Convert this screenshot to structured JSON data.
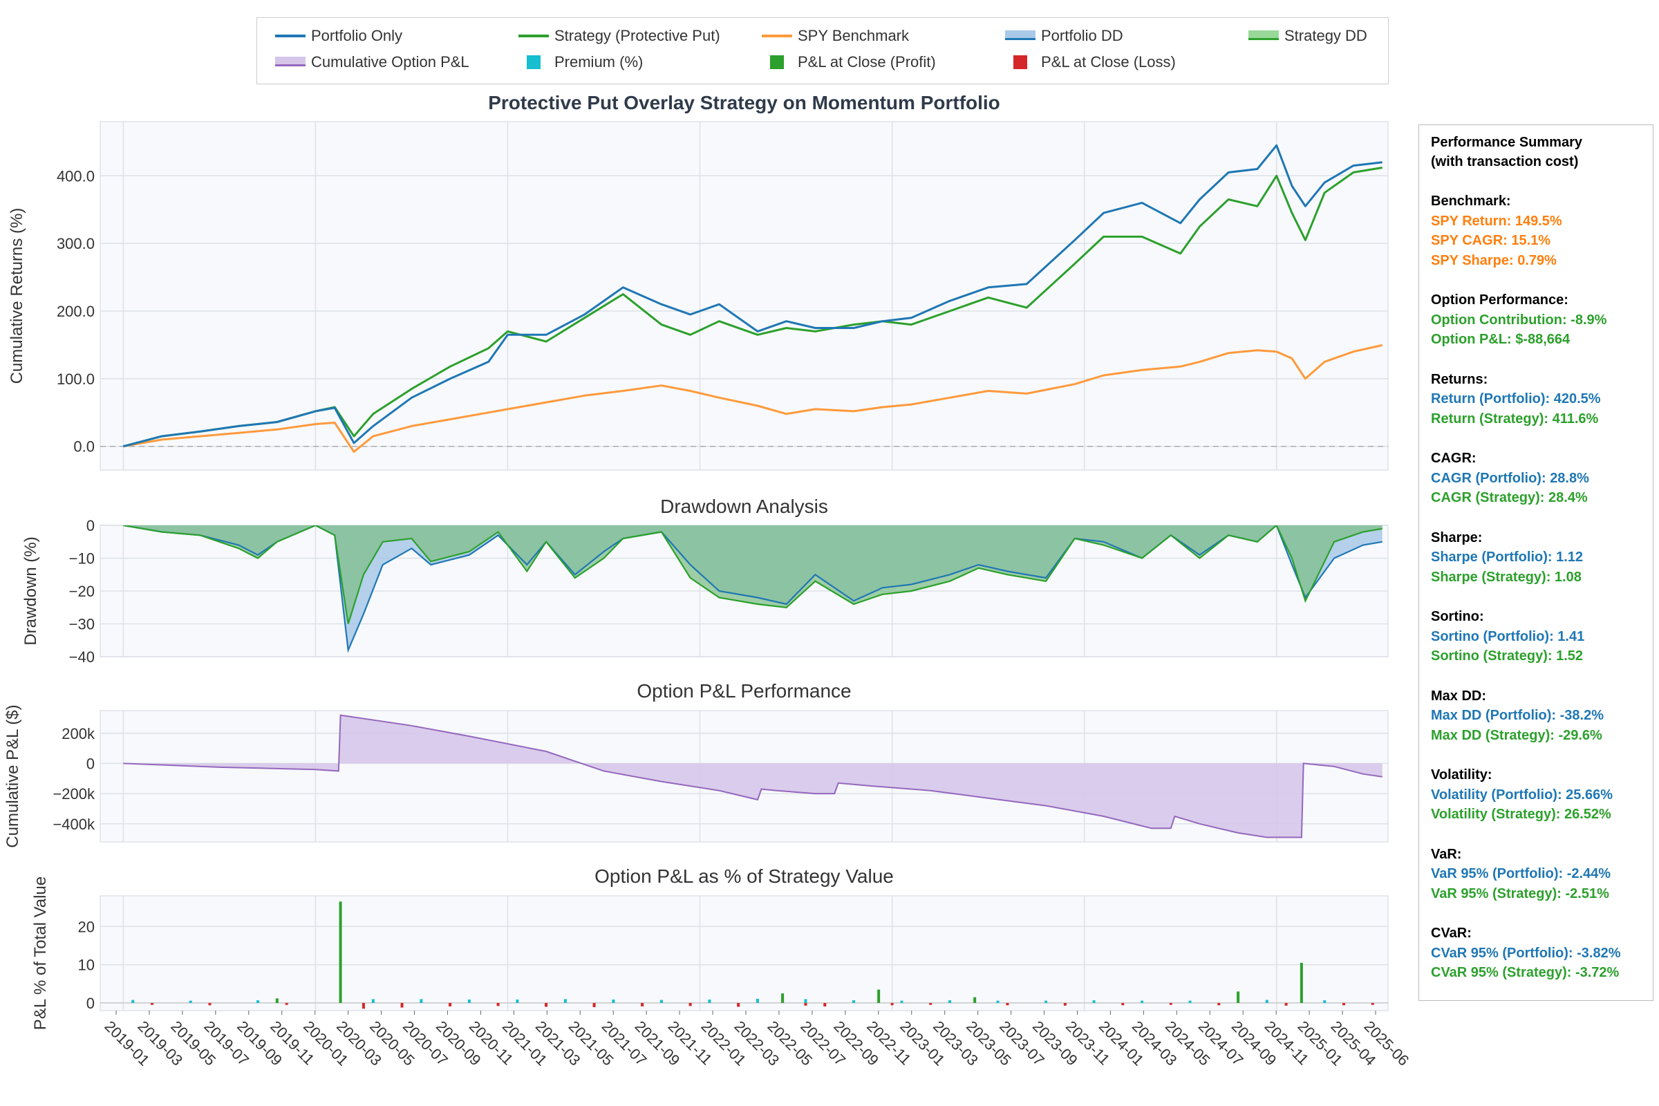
{
  "legend": {
    "items": [
      {
        "label": "Portfolio Only",
        "kind": "line",
        "color": "#1f77b4"
      },
      {
        "label": "Strategy (Protective Put)",
        "kind": "line",
        "color": "#2ca02c"
      },
      {
        "label": "SPY Benchmark",
        "kind": "line",
        "color": "#ff9a3c"
      },
      {
        "label": "Portfolio DD",
        "kind": "area",
        "color": "#a8c9e8"
      },
      {
        "label": "Strategy DD",
        "kind": "area",
        "color": "#98d898"
      },
      {
        "label": "Cumulative Option P&L",
        "kind": "area",
        "color": "#d6c6ea"
      },
      {
        "label": "Premium (%)",
        "kind": "square",
        "color": "#17becf"
      },
      {
        "label": "P&L at Close (Profit)",
        "kind": "square",
        "color": "#2ca02c"
      },
      {
        "label": "P&L at Close (Loss)",
        "kind": "square",
        "color": "#d62728"
      }
    ]
  },
  "colors": {
    "portfolio": "#1f77b4",
    "strategy": "#2ca02c",
    "spy": "#ff9a3c",
    "option": "#9467bd",
    "premium": "#17becf",
    "loss": "#d62728"
  },
  "chart_data": [
    {
      "id": "returns",
      "type": "line",
      "title": "Protective Put Overlay Strategy on Momentum Portfolio",
      "ylabel": "Cumulative Returns (%)",
      "ylim": [
        -35,
        480
      ],
      "yticks": [
        0,
        100,
        200,
        300,
        400
      ],
      "ytick_labels": [
        "0.0",
        "100.0",
        "200.0",
        "300.0",
        "400.0"
      ],
      "x": [
        2019.0,
        2019.2,
        2019.4,
        2019.6,
        2019.8,
        2020.0,
        2020.1,
        2020.2,
        2020.3,
        2020.5,
        2020.7,
        2020.9,
        2021.0,
        2021.2,
        2021.4,
        2021.6,
        2021.8,
        2021.95,
        2022.1,
        2022.3,
        2022.45,
        2022.6,
        2022.8,
        2022.95,
        2023.1,
        2023.3,
        2023.5,
        2023.7,
        2023.95,
        2024.1,
        2024.3,
        2024.5,
        2024.6,
        2024.75,
        2024.9,
        2025.0,
        2025.08,
        2025.15,
        2025.25,
        2025.4,
        2025.55
      ],
      "series": [
        {
          "name": "Portfolio Only",
          "values": [
            0,
            15,
            22,
            30,
            36,
            52,
            57,
            5,
            30,
            72,
            100,
            125,
            165,
            165,
            195,
            235,
            210,
            195,
            210,
            170,
            185,
            175,
            175,
            185,
            190,
            215,
            235,
            240,
            305,
            345,
            360,
            330,
            365,
            405,
            410,
            445,
            385,
            355,
            390,
            415,
            420
          ]
        },
        {
          "name": "Strategy (Protective Put)",
          "values": [
            0,
            15,
            22,
            30,
            36,
            52,
            58,
            15,
            48,
            85,
            118,
            145,
            170,
            155,
            190,
            225,
            180,
            165,
            185,
            165,
            175,
            170,
            180,
            185,
            180,
            200,
            220,
            205,
            270,
            310,
            310,
            285,
            325,
            365,
            355,
            400,
            345,
            305,
            375,
            405,
            412
          ]
        },
        {
          "name": "SPY Benchmark",
          "values": [
            0,
            10,
            15,
            20,
            25,
            33,
            35,
            -8,
            15,
            30,
            40,
            50,
            55,
            65,
            75,
            82,
            90,
            82,
            72,
            60,
            48,
            55,
            52,
            58,
            62,
            72,
            82,
            78,
            92,
            105,
            113,
            118,
            125,
            138,
            142,
            140,
            130,
            100,
            125,
            140,
            149.5
          ]
        }
      ]
    },
    {
      "id": "drawdown",
      "type": "area",
      "title": "Drawdown Analysis",
      "ylabel": "Drawdown (%)",
      "ylim": [
        -40,
        0
      ],
      "yticks": [
        0,
        -10,
        -20,
        -30,
        -40
      ],
      "ytick_labels": [
        "0",
        "−10",
        "−20",
        "−30",
        "−40"
      ],
      "x": [
        2019.0,
        2019.2,
        2019.4,
        2019.6,
        2019.7,
        2019.8,
        2020.0,
        2020.1,
        2020.17,
        2020.25,
        2020.35,
        2020.5,
        2020.6,
        2020.8,
        2020.95,
        2021.1,
        2021.2,
        2021.35,
        2021.5,
        2021.6,
        2021.8,
        2021.95,
        2022.1,
        2022.3,
        2022.45,
        2022.6,
        2022.8,
        2022.95,
        2023.1,
        2023.3,
        2023.45,
        2023.6,
        2023.8,
        2023.95,
        2024.1,
        2024.3,
        2024.45,
        2024.6,
        2024.75,
        2024.9,
        2025.0,
        2025.08,
        2025.15,
        2025.3,
        2025.45,
        2025.55
      ],
      "series": [
        {
          "name": "Portfolio DD",
          "values": [
            0,
            -2,
            -3,
            -6,
            -9,
            -5,
            0,
            -3,
            -38,
            -27,
            -12,
            -7,
            -12,
            -9,
            -3,
            -12,
            -5,
            -15,
            -8,
            -4,
            -2,
            -12,
            -20,
            -22,
            -24,
            -15,
            -23,
            -19,
            -18,
            -15,
            -12,
            -14,
            -16,
            -4,
            -5,
            -10,
            -3,
            -9,
            -3,
            -5,
            0,
            -12,
            -22,
            -10,
            -6,
            -5
          ]
        },
        {
          "name": "Strategy DD",
          "values": [
            0,
            -2,
            -3,
            -7,
            -10,
            -5,
            0,
            -3,
            -30,
            -15,
            -5,
            -4,
            -11,
            -8,
            -2,
            -14,
            -5,
            -16,
            -10,
            -4,
            -2,
            -16,
            -22,
            -24,
            -25,
            -17,
            -24,
            -21,
            -20,
            -17,
            -13,
            -15,
            -17,
            -4,
            -6,
            -10,
            -3,
            -10,
            -3,
            -5,
            0,
            -10,
            -23,
            -5,
            -2,
            -1
          ]
        }
      ]
    },
    {
      "id": "option_pnl",
      "type": "area",
      "title": "Option P&L Performance",
      "ylabel": "Cumulative P&L ($)",
      "ylim": [
        -520000,
        350000
      ],
      "yticks": [
        200000,
        0,
        -200000,
        -400000
      ],
      "ytick_labels": [
        "200k",
        "0",
        "−200k",
        "−400k"
      ],
      "x": [
        2019.0,
        2019.5,
        2020.0,
        2020.12,
        2020.13,
        2020.5,
        2020.8,
        2021.2,
        2021.5,
        2021.8,
        2022.1,
        2022.3,
        2022.32,
        2022.4,
        2022.6,
        2022.7,
        2022.72,
        2022.9,
        2023.2,
        2023.5,
        2023.8,
        2024.1,
        2024.35,
        2024.45,
        2024.47,
        2024.6,
        2024.8,
        2024.95,
        2025.0,
        2025.13,
        2025.14,
        2025.3,
        2025.45,
        2025.55
      ],
      "series": [
        {
          "name": "Cumulative Option P&L",
          "values": [
            0,
            -25000,
            -40000,
            -50000,
            320000,
            250000,
            180000,
            80000,
            -50000,
            -120000,
            -180000,
            -240000,
            -170000,
            -180000,
            -200000,
            -200000,
            -130000,
            -150000,
            -180000,
            -230000,
            -280000,
            -350000,
            -430000,
            -430000,
            -350000,
            -400000,
            -460000,
            -490000,
            -490000,
            -490000,
            0,
            -20000,
            -70000,
            -88664
          ]
        }
      ]
    },
    {
      "id": "option_pct",
      "type": "bar",
      "title": "Option P&L as % of Strategy Value",
      "ylabel": "P&L % of Total Value",
      "ylim": [
        -2,
        28
      ],
      "yticks": [
        0,
        10,
        20
      ],
      "ytick_labels": [
        "0",
        "10",
        "20"
      ],
      "bar_x": [
        2020.13,
        2022.43,
        2022.93,
        2023.43,
        2024.8,
        2025.13,
        2019.8
      ],
      "bar_values": [
        26.5,
        2.5,
        3.5,
        1.5,
        3.0,
        10.5,
        1.2
      ],
      "premium_x": [
        2019.05,
        2019.35,
        2019.7,
        2020.3,
        2020.55,
        2020.8,
        2021.05,
        2021.3,
        2021.55,
        2021.8,
        2022.05,
        2022.3,
        2022.55,
        2022.8,
        2023.05,
        2023.3,
        2023.55,
        2023.8,
        2024.05,
        2024.3,
        2024.55,
        2024.95,
        2025.25
      ],
      "premium_values": [
        0.8,
        0.6,
        0.7,
        1.0,
        1.0,
        0.9,
        0.9,
        1.0,
        0.9,
        0.8,
        0.9,
        1.1,
        1.0,
        0.7,
        0.6,
        0.7,
        0.6,
        0.6,
        0.7,
        0.6,
        0.6,
        0.8,
        0.7
      ],
      "loss_x": [
        2019.15,
        2019.45,
        2019.85,
        2020.25,
        2020.45,
        2020.7,
        2020.95,
        2021.2,
        2021.45,
        2021.7,
        2021.95,
        2022.2,
        2022.55,
        2022.65,
        2023.0,
        2023.2,
        2023.6,
        2023.9,
        2024.2,
        2024.45,
        2024.7,
        2025.05,
        2025.35,
        2025.5
      ],
      "loss_values": [
        -0.5,
        -0.6,
        -0.5,
        -1.5,
        -1.2,
        -0.9,
        -0.8,
        -1.0,
        -1.1,
        -0.9,
        -0.8,
        -1.0,
        -0.7,
        -0.9,
        -0.6,
        -0.5,
        -0.6,
        -0.7,
        -0.6,
        -0.5,
        -0.6,
        -0.7,
        -0.6,
        -0.5
      ],
      "xtick_labels": [
        "2019-01",
        "2019-03",
        "2019-05",
        "2019-07",
        "2019-09",
        "2019-11",
        "2020-01",
        "2020-03",
        "2020-05",
        "2020-07",
        "2020-09",
        "2020-11",
        "2021-01",
        "2021-03",
        "2021-05",
        "2021-07",
        "2021-09",
        "2021-11",
        "2022-01",
        "2022-03",
        "2022-05",
        "2022-07",
        "2022-09",
        "2022-11",
        "2023-01",
        "2023-03",
        "2023-05",
        "2023-07",
        "2023-09",
        "2023-11",
        "2024-01",
        "2024-03",
        "2024-05",
        "2024-07",
        "2024-09",
        "2024-11",
        "2025-01",
        "2025-04",
        "2025-06"
      ]
    }
  ],
  "summary": {
    "title_1": "Performance Summary",
    "title_2": "(with transaction cost)",
    "sections": [
      {
        "header": "Benchmark:",
        "lines": [
          {
            "text": "SPY Return: 149.5%",
            "color": "#ff7f0e"
          },
          {
            "text": "SPY CAGR: 15.1%",
            "color": "#ff7f0e"
          },
          {
            "text": "SPY Sharpe: 0.79%",
            "color": "#ff7f0e"
          }
        ]
      },
      {
        "header": "Option Performance:",
        "lines": [
          {
            "text": "Option Contribution: -8.9%",
            "color": "#2ca02c"
          },
          {
            "text": "Option P&L: $-88,664",
            "color": "#2ca02c"
          }
        ]
      },
      {
        "header": "Returns:",
        "lines": [
          {
            "text": "Return (Portfolio): 420.5%",
            "color": "#1f77b4"
          },
          {
            "text": "Return (Strategy): 411.6%",
            "color": "#2ca02c"
          }
        ]
      },
      {
        "header": "CAGR:",
        "lines": [
          {
            "text": "CAGR (Portfolio): 28.8%",
            "color": "#1f77b4"
          },
          {
            "text": "CAGR (Strategy): 28.4%",
            "color": "#2ca02c"
          }
        ]
      },
      {
        "header": "Sharpe:",
        "lines": [
          {
            "text": "Sharpe (Portfolio): 1.12",
            "color": "#1f77b4"
          },
          {
            "text": "Sharpe (Strategy): 1.08",
            "color": "#2ca02c"
          }
        ]
      },
      {
        "header": "Sortino:",
        "lines": [
          {
            "text": "Sortino (Portfolio): 1.41",
            "color": "#1f77b4"
          },
          {
            "text": "Sortino (Strategy): 1.52",
            "color": "#2ca02c"
          }
        ]
      },
      {
        "header": "Max DD:",
        "lines": [
          {
            "text": "Max DD (Portfolio): -38.2%",
            "color": "#1f77b4"
          },
          {
            "text": "Max DD (Strategy): -29.6%",
            "color": "#2ca02c"
          }
        ]
      },
      {
        "header": "Volatility:",
        "lines": [
          {
            "text": "Volatility (Portfolio): 25.66%",
            "color": "#1f77b4"
          },
          {
            "text": "Volatility (Strategy): 26.52%",
            "color": "#2ca02c"
          }
        ]
      },
      {
        "header": "VaR:",
        "lines": [
          {
            "text": "VaR 95% (Portfolio): -2.44%",
            "color": "#1f77b4"
          },
          {
            "text": "VaR 95% (Strategy): -2.51%",
            "color": "#2ca02c"
          }
        ]
      },
      {
        "header": "CVaR:",
        "lines": [
          {
            "text": "CVaR 95% (Portfolio): -3.82%",
            "color": "#1f77b4"
          },
          {
            "text": "CVaR 95% (Strategy): -3.72%",
            "color": "#2ca02c"
          }
        ]
      }
    ]
  }
}
